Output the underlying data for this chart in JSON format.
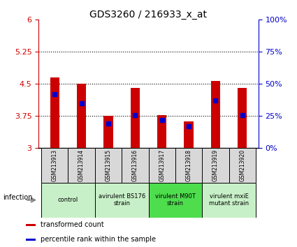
{
  "title": "GDS3260 / 216933_x_at",
  "samples": [
    "GSM213913",
    "GSM213914",
    "GSM213915",
    "GSM213916",
    "GSM213917",
    "GSM213918",
    "GSM213919",
    "GSM213920"
  ],
  "transformed_count": [
    4.65,
    4.51,
    3.75,
    4.4,
    3.78,
    3.62,
    4.57,
    4.4
  ],
  "percentile_rank": [
    42,
    35,
    19,
    26,
    22,
    17,
    37,
    26
  ],
  "ylim_left": [
    3,
    6
  ],
  "yticks_left": [
    3,
    3.75,
    4.5,
    5.25,
    6
  ],
  "ytick_labels_left": [
    "3",
    "3.75",
    "4.5",
    "5.25",
    "6"
  ],
  "yticks_right": [
    0,
    25,
    50,
    75,
    100
  ],
  "ytick_labels_right": [
    "0%",
    "25%",
    "50%",
    "75%",
    "100%"
  ],
  "dotted_lines": [
    3.75,
    4.5,
    5.25
  ],
  "groups": [
    {
      "label": "control",
      "indices": [
        0,
        1
      ]
    },
    {
      "label": "avirulent BS176\nstrain",
      "indices": [
        2,
        3
      ]
    },
    {
      "label": "virulent M90T\nstrain",
      "indices": [
        4,
        5
      ]
    },
    {
      "label": "virulent mxiE\nmutant strain",
      "indices": [
        6,
        7
      ]
    }
  ],
  "group_colors": [
    "#c8f0c8",
    "#c8f0c8",
    "#4ddd4d",
    "#c8f0c8"
  ],
  "bar_color": "#cc0000",
  "blue_color": "#0000cc",
  "bar_width": 0.35,
  "infection_label": "infection",
  "legend_items": [
    {
      "label": "transformed count",
      "color": "#cc0000"
    },
    {
      "label": "percentile rank within the sample",
      "color": "#0000cc"
    }
  ],
  "left_tick_color": "#cc0000",
  "right_tick_color": "#0000cc",
  "sample_box_color": "#d8d8d8",
  "bar_base": 3,
  "fig_width": 4.25,
  "fig_height": 3.54
}
